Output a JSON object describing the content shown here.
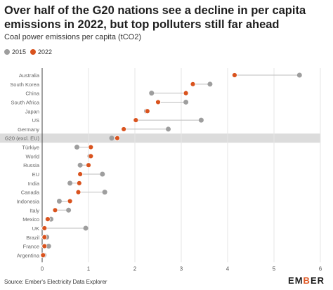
{
  "header": {
    "title": "Over half of the G20 nations see a decline in per capita emissions in 2022, but top polluters still far ahead",
    "subtitle": "Coal power emissions per capita (tCO2)"
  },
  "footer": {
    "source": "Source: Ember's Electricity Data Explorer",
    "logo_text": "EMBER"
  },
  "colors": {
    "y2015": "#9e9e9e",
    "y2022": "#d9531e",
    "highlight_band": "#dcdcdc",
    "connector": "#bdbdbd",
    "grid": "#e6e6e6"
  },
  "chart_data": {
    "type": "dot-plot",
    "title": "Over half of the G20 nations see a decline in per capita emissions in 2022, but top polluters still far ahead",
    "subtitle": "Coal power emissions per capita (tCO2)",
    "x_ticks": [
      "0",
      "1",
      "2",
      "3",
      "4",
      "5",
      "6"
    ],
    "xlim": [
      0,
      6
    ],
    "grid": "vertical",
    "legend_position": "top-left",
    "highlight_category": "G20 (excl. EU)",
    "categories": [
      "Australia",
      "South Korea",
      "China",
      "South Africa",
      "Japan",
      "US",
      "Germany",
      "G20 (excl. EU)",
      "Türkiye",
      "World",
      "Russia",
      "EU",
      "India",
      "Canada",
      "Indonesia",
      "Italy",
      "Mexico",
      "UK",
      "Brazil",
      "France",
      "Argentina"
    ],
    "series": [
      {
        "name": "2015",
        "values": [
          5.55,
          3.62,
          2.36,
          3.1,
          2.25,
          3.43,
          2.72,
          1.5,
          0.75,
          1.03,
          0.82,
          1.3,
          0.6,
          1.35,
          0.37,
          0.57,
          0.19,
          0.94,
          0.1,
          0.14,
          0.04
        ]
      },
      {
        "name": "2022",
        "values": [
          4.15,
          3.25,
          3.1,
          2.5,
          2.27,
          2.02,
          1.76,
          1.62,
          1.05,
          1.05,
          1.0,
          0.82,
          0.8,
          0.78,
          0.6,
          0.28,
          0.12,
          0.05,
          0.05,
          0.05,
          0.02
        ]
      }
    ]
  }
}
